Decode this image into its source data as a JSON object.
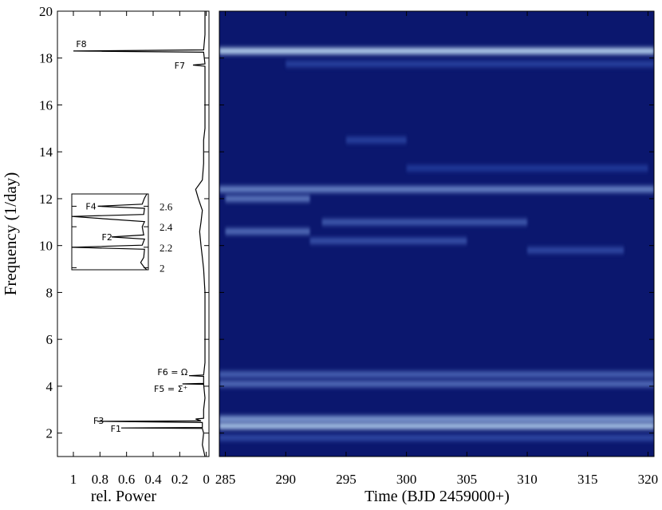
{
  "chart_data": [
    {
      "type": "line",
      "xlabel": "rel. Power",
      "ylabel": "Frequency (1/day)",
      "xlim": [
        1.12,
        -0.02
      ],
      "ylim": [
        1,
        20
      ],
      "xticks": [
        1,
        0.8,
        0.6,
        0.4,
        0.2,
        0
      ],
      "yticks": [
        2,
        4,
        6,
        8,
        10,
        12,
        14,
        16,
        18,
        20
      ],
      "color": "#000000",
      "frequencies": [
        1.0,
        1.5,
        2.0,
        2.2,
        2.22,
        2.24,
        2.45,
        2.5,
        2.52,
        2.6,
        2.63,
        3.0,
        3.5,
        4.08,
        4.1,
        4.12,
        4.42,
        4.45,
        4.48,
        5,
        6,
        7,
        8,
        9,
        9.5,
        10,
        10.6,
        11,
        11.5,
        12,
        12.4,
        12.8,
        13.5,
        14.5,
        15,
        16,
        17,
        17.65,
        17.7,
        17.75,
        18.25,
        18.3,
        18.35,
        19,
        20
      ],
      "values": [
        0.01,
        0.03,
        0.02,
        0.03,
        0.64,
        0.03,
        0.03,
        0.82,
        0.04,
        0.08,
        0.02,
        0.02,
        0.01,
        0.02,
        0.18,
        0.02,
        0.02,
        0.13,
        0.02,
        0.01,
        0.01,
        0.01,
        0.01,
        0.02,
        0.03,
        0.04,
        0.05,
        0.04,
        0.03,
        0.06,
        0.08,
        0.03,
        0.02,
        0.02,
        0.01,
        0.01,
        0.01,
        0.01,
        0.1,
        0.01,
        0.02,
        1.0,
        0.02,
        0.01,
        0.01
      ],
      "annotations": [
        {
          "text": "F8",
          "frequency": 18.6,
          "power": 0.9
        },
        {
          "text": "F7",
          "frequency": 17.68,
          "power": 0.16
        },
        {
          "text": "F6 = Ω",
          "frequency": 4.61,
          "power": 0.14
        },
        {
          "text": "F5 = Σ⁺",
          "frequency": 3.9,
          "power": 0.14
        },
        {
          "text": "F3",
          "frequency": 2.53,
          "power": 0.77
        },
        {
          "text": "F1",
          "frequency": 2.19,
          "power": 0.64
        }
      ]
    },
    {
      "type": "line",
      "xlim": [
        1,
        0
      ],
      "ylim": [
        1.98,
        2.72
      ],
      "yticks": [
        2,
        2.2,
        2.4,
        2.6
      ],
      "color": "#000000",
      "frequencies": [
        1.98,
        2.0,
        2.05,
        2.1,
        2.18,
        2.2,
        2.22,
        2.28,
        2.3,
        2.32,
        2.4,
        2.45,
        2.5,
        2.52,
        2.58,
        2.6,
        2.62,
        2.68,
        2.72
      ],
      "values": [
        0.02,
        0.05,
        0.1,
        0.06,
        0.05,
        1.0,
        0.08,
        0.05,
        0.48,
        0.06,
        0.08,
        0.05,
        1.0,
        0.06,
        0.05,
        0.66,
        0.08,
        0.05,
        0.02
      ],
      "annotations": [
        {
          "text": "F4",
          "frequency": 2.6,
          "power": 0.68
        },
        {
          "text": "F2",
          "frequency": 2.3,
          "power": 0.47
        }
      ]
    },
    {
      "type": "heatmap",
      "xlabel": "Time (BJD 2459000+)",
      "xlim": [
        284.5,
        320.5
      ],
      "ylim": [
        1,
        20
      ],
      "xticks": [
        285,
        290,
        295,
        300,
        305,
        310,
        315,
        320
      ],
      "yticks": [
        2,
        4,
        6,
        8,
        10,
        12,
        14,
        16,
        18,
        20
      ],
      "background": "#0b176e",
      "colors": [
        "#1238b8",
        "#d6f3ff"
      ],
      "ridges": [
        {
          "frequency": 18.3,
          "start": 284.5,
          "end": 320.5,
          "intensity": 0.9
        },
        {
          "frequency": 17.75,
          "start": 290,
          "end": 320.5,
          "intensity": 0.25
        },
        {
          "frequency": 14.5,
          "start": 295,
          "end": 300,
          "intensity": 0.25
        },
        {
          "frequency": 13.3,
          "start": 300,
          "end": 320,
          "intensity": 0.2
        },
        {
          "frequency": 12.4,
          "start": 284.5,
          "end": 320.5,
          "intensity": 0.6
        },
        {
          "frequency": 12.0,
          "start": 285,
          "end": 292,
          "intensity": 0.55
        },
        {
          "frequency": 11.0,
          "start": 293,
          "end": 310,
          "intensity": 0.4
        },
        {
          "frequency": 10.6,
          "start": 285,
          "end": 292,
          "intensity": 0.5
        },
        {
          "frequency": 10.2,
          "start": 292,
          "end": 305,
          "intensity": 0.35
        },
        {
          "frequency": 9.8,
          "start": 310,
          "end": 318,
          "intensity": 0.3
        },
        {
          "frequency": 4.5,
          "start": 284.5,
          "end": 320.5,
          "intensity": 0.45
        },
        {
          "frequency": 4.1,
          "start": 284.5,
          "end": 320.5,
          "intensity": 0.5
        },
        {
          "frequency": 2.6,
          "start": 284.5,
          "end": 320.5,
          "intensity": 0.7
        },
        {
          "frequency": 2.3,
          "start": 284.5,
          "end": 320.5,
          "intensity": 0.85
        },
        {
          "frequency": 1.8,
          "start": 284.5,
          "end": 320.5,
          "intensity": 0.3
        }
      ]
    }
  ]
}
